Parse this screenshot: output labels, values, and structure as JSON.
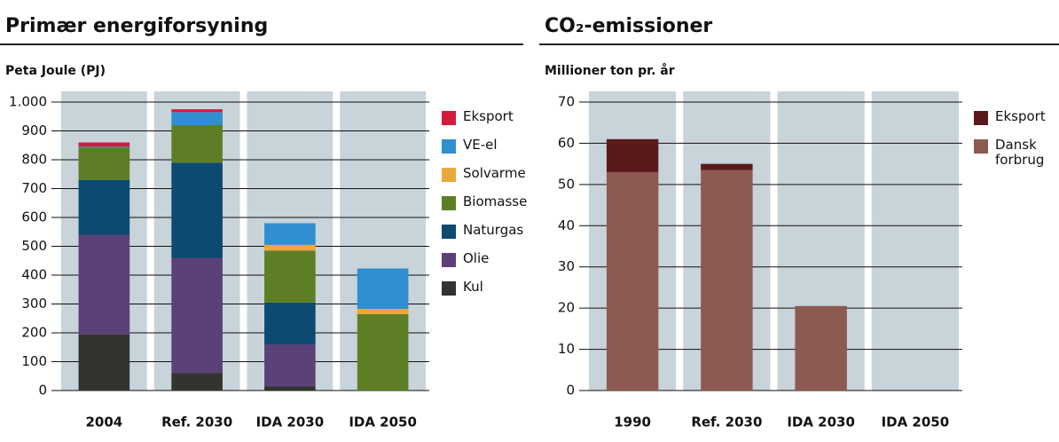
{
  "chart_data": [
    {
      "type": "stacked_bar",
      "title": "Primær energiforsyning",
      "y_label": "Peta Joule (PJ)",
      "categories": [
        "2004",
        "Ref. 2030",
        "IDA 2030",
        "IDA 2050"
      ],
      "series": [
        {
          "name": "Kul",
          "color": "#33332f",
          "values": [
            195,
            60,
            15,
            0
          ]
        },
        {
          "name": "Olie",
          "color": "#5a4278",
          "values": [
            345,
            400,
            145,
            0
          ]
        },
        {
          "name": "Naturgas",
          "color": "#0c4a70",
          "values": [
            190,
            330,
            145,
            0
          ]
        },
        {
          "name": "Biomasse",
          "color": "#5e7e25",
          "values": [
            110,
            130,
            180,
            265
          ]
        },
        {
          "name": "Solvarme",
          "color": "#e9a93a",
          "values": [
            0,
            0,
            20,
            18
          ]
        },
        {
          "name": "VE-el",
          "color": "#2f8fcf",
          "values": [
            5,
            45,
            75,
            140
          ]
        },
        {
          "name": "Eksport",
          "color": "#d21c3a",
          "values": [
            15,
            10,
            0,
            0
          ]
        }
      ],
      "ylim": [
        0,
        1000
      ],
      "yticks": [
        0,
        100,
        200,
        300,
        400,
        500,
        600,
        700,
        800,
        900,
        {
          "value": 1000,
          "label": "1.000"
        }
      ],
      "grid": true,
      "legend": "right"
    },
    {
      "type": "stacked_bar",
      "title": "CO₂-emissioner",
      "y_label": "Millioner ton pr. år",
      "categories": [
        "1990",
        "Ref. 2030",
        "IDA 2030",
        "IDA 2050"
      ],
      "series": [
        {
          "name": "Dansk forbrug",
          "color": "#8c5a50",
          "values": [
            53,
            53.5,
            20.5,
            0
          ]
        },
        {
          "name": "Eksport",
          "color": "#5a1a1c",
          "values": [
            8,
            1.5,
            0,
            0
          ]
        }
      ],
      "ylim": [
        0,
        70
      ],
      "yticks": [
        0,
        10,
        20,
        30,
        40,
        50,
        60,
        70
      ],
      "grid": true,
      "legend": "right"
    }
  ]
}
